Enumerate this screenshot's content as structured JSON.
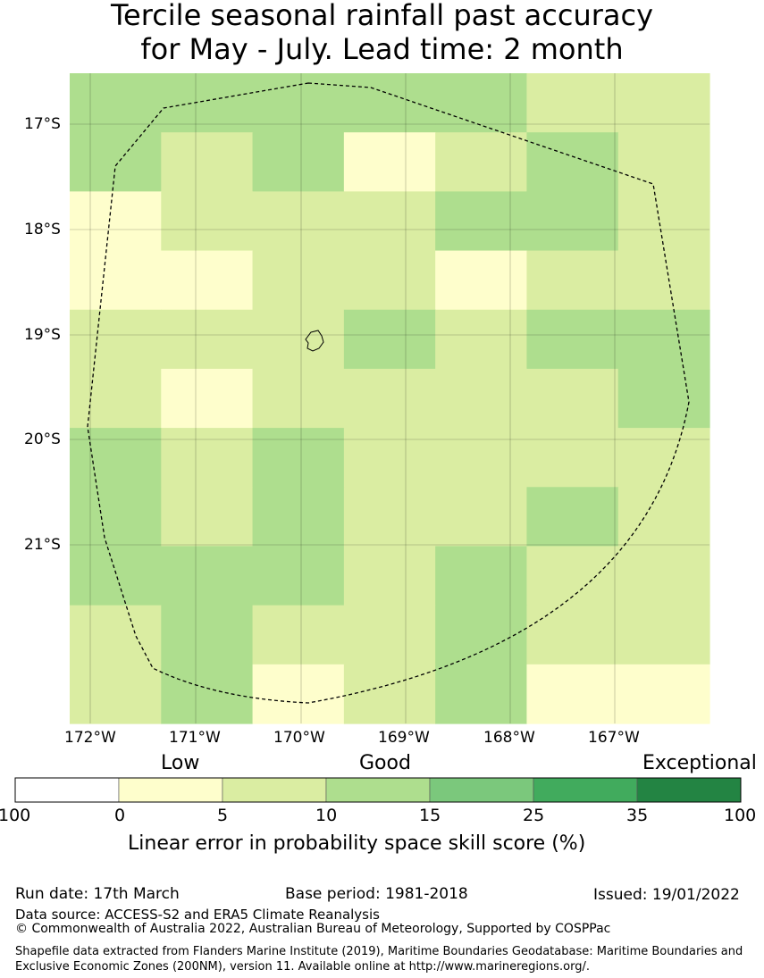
{
  "title": {
    "line1": "Tercile seasonal rainfall past accuracy",
    "line2": "for May - July. Lead time: 2 month"
  },
  "map": {
    "lat_labels": [
      "17°S",
      "18°S",
      "19°S",
      "20°S",
      "21°S"
    ],
    "lon_labels": [
      "172°W",
      "171°W",
      "170°W",
      "169°W",
      "168°W",
      "167°W"
    ],
    "grid_cols": 7,
    "grid_rows": 11,
    "cell_class_grid": [
      [
        2,
        2,
        2,
        2,
        2,
        1,
        1
      ],
      [
        2,
        1,
        2,
        0,
        1,
        2,
        1
      ],
      [
        0,
        1,
        1,
        1,
        2,
        2,
        1
      ],
      [
        0,
        0,
        1,
        1,
        0,
        1,
        1
      ],
      [
        1,
        1,
        1,
        2,
        1,
        2,
        2
      ],
      [
        1,
        0,
        1,
        1,
        1,
        1,
        2
      ],
      [
        2,
        1,
        2,
        1,
        1,
        1,
        1
      ],
      [
        2,
        1,
        2,
        1,
        1,
        2,
        1
      ],
      [
        2,
        2,
        2,
        1,
        2,
        1,
        1
      ],
      [
        1,
        2,
        1,
        1,
        2,
        1,
        1
      ],
      [
        1,
        2,
        0,
        1,
        2,
        0,
        0
      ]
    ],
    "colors": {
      "above_zero": "#FEFECC",
      "above_five": "#DAEDA2",
      "above_ten": "#AEDE8E",
      "eez_boundary": "#000000",
      "island_outline": "#000000"
    }
  },
  "legend": {
    "category_labels": [
      "Low",
      "Good",
      "Exceptional"
    ],
    "tick_labels": [
      "100",
      "0",
      "5",
      "10",
      "15",
      "25",
      "35",
      "100"
    ],
    "colors": [
      "#FFFFFF",
      "#FEFECC",
      "#DAEDA2",
      "#AEDE8E",
      "#7BC87C",
      "#41AB5D",
      "#238443"
    ],
    "axis_label": "Linear error in probability space skill score (%)"
  },
  "footer": {
    "run_date": "Run date: 17th March",
    "base_period": "Base period: 1981-2018",
    "issued": "Issued: 19/01/2022",
    "data_source": "Data source: ACCESS-S2 and ERA5 Climate Reanalysis",
    "copyright": "© Commonwealth of Australia 2022, Australian Bureau of Meteorology, Supported by COSPPac",
    "shapefile": "Shapefile data extracted from Flanders Marine Institute (2019), Maritime Boundaries Geodatabase: Maritime Boundaries and Exclusive Economic Zones (200NM), version 11. Available online at http://www.marineregions.org/."
  }
}
